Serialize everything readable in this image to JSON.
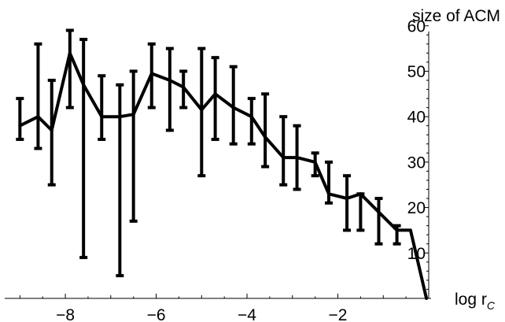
{
  "chart_data": {
    "type": "line",
    "error_bars": true,
    "xlabel": "log r",
    "xlabel_subscript": "C",
    "ylabel": "size of ACM",
    "xlim": [
      -9.3,
      0.0
    ],
    "ylim": [
      0,
      61
    ],
    "x_ticks": [
      -8,
      -6,
      -4,
      -2
    ],
    "x_tick_labels": [
      "−8",
      "−6",
      "−4",
      "−2"
    ],
    "y_ticks": [
      10,
      20,
      30,
      40,
      50,
      60
    ],
    "y_tick_labels": [
      "10",
      "20",
      "30",
      "40",
      "50",
      "60"
    ],
    "grid": false,
    "line_color": "#000000",
    "points": [
      {
        "x": -9.0,
        "y": 38,
        "low": 35,
        "high": 44
      },
      {
        "x": -8.6,
        "y": 40,
        "low": 33,
        "high": 56
      },
      {
        "x": -8.3,
        "y": 37,
        "low": 25,
        "high": 48
      },
      {
        "x": -7.9,
        "y": 54,
        "low": 42,
        "high": 59
      },
      {
        "x": -7.6,
        "y": 47,
        "low": 9,
        "high": 57
      },
      {
        "x": -7.2,
        "y": 40,
        "low": 35,
        "high": 49
      },
      {
        "x": -6.8,
        "y": 40,
        "low": 5,
        "high": 47
      },
      {
        "x": -6.5,
        "y": 40.5,
        "low": 17,
        "high": 50
      },
      {
        "x": -6.1,
        "y": 49.5,
        "low": 42,
        "high": 56
      },
      {
        "x": -5.7,
        "y": 48,
        "low": 37,
        "high": 55
      },
      {
        "x": -5.4,
        "y": 46.5,
        "low": 42,
        "high": 50
      },
      {
        "x": -5.0,
        "y": 41.5,
        "low": 27,
        "high": 55
      },
      {
        "x": -4.7,
        "y": 45,
        "low": 35,
        "high": 53
      },
      {
        "x": -4.3,
        "y": 42,
        "low": 34,
        "high": 51
      },
      {
        "x": -3.9,
        "y": 40,
        "low": 34,
        "high": 44
      },
      {
        "x": -3.6,
        "y": 35.5,
        "low": 29,
        "high": 45
      },
      {
        "x": -3.2,
        "y": 31,
        "low": 25,
        "high": 40
      },
      {
        "x": -2.9,
        "y": 31,
        "low": 24,
        "high": 38
      },
      {
        "x": -2.5,
        "y": 30,
        "low": 27,
        "high": 32
      },
      {
        "x": -2.2,
        "y": 23,
        "low": 21,
        "high": 30
      },
      {
        "x": -1.8,
        "y": 22,
        "low": 15,
        "high": 27
      },
      {
        "x": -1.5,
        "y": 23,
        "low": 15,
        "high": 23
      },
      {
        "x": -1.1,
        "y": 19,
        "low": 12,
        "high": 22
      },
      {
        "x": -0.7,
        "y": 15,
        "low": 12,
        "high": 16
      },
      {
        "x": -0.4,
        "y": 15,
        "low": 15,
        "high": 15
      },
      {
        "x": -0.05,
        "y": 0,
        "low": 0,
        "high": 0
      }
    ]
  }
}
